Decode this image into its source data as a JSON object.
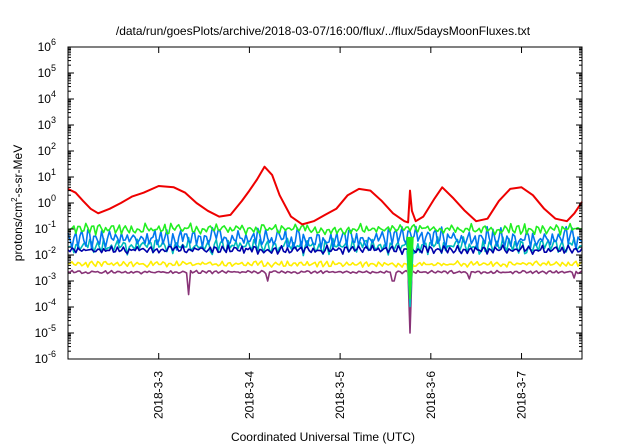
{
  "chart_data": {
    "type": "line",
    "title": "/data/run/goesPlots/archive/2018-03-07/16:00/flux/../flux/5daysMoonFluxes.txt",
    "xlabel": "Coordinated Universal Time (UTC)",
    "ylabel": "protons/cm²-s-sr-MeV",
    "ylabel_parts": {
      "base": "protons/cm",
      "sup": "2",
      "rest": "-s-sr-MeV"
    },
    "y_scale": "log",
    "ylim": [
      1e-06,
      1000000.0
    ],
    "y_ticks": [
      {
        "value": 1e-06,
        "base": "10",
        "exp": "-6"
      },
      {
        "value": 1e-05,
        "base": "10",
        "exp": "-5"
      },
      {
        "value": 0.0001,
        "base": "10",
        "exp": "-4"
      },
      {
        "value": 0.001,
        "base": "10",
        "exp": "-3"
      },
      {
        "value": 0.01,
        "base": "10",
        "exp": "-2"
      },
      {
        "value": 0.1,
        "base": "10",
        "exp": "-1"
      },
      {
        "value": 1,
        "base": "10",
        "exp": "0"
      },
      {
        "value": 10,
        "base": "10",
        "exp": "1"
      },
      {
        "value": 100,
        "base": "10",
        "exp": "2"
      },
      {
        "value": 1000.0,
        "base": "10",
        "exp": "3"
      },
      {
        "value": 10000.0,
        "base": "10",
        "exp": "4"
      },
      {
        "value": 100000.0,
        "base": "10",
        "exp": "5"
      },
      {
        "value": 1000000.0,
        "base": "10",
        "exp": "6"
      }
    ],
    "xlim": [
      "2018-03-02T00:00",
      "2018-03-07T16:00"
    ],
    "x_ticks": [
      {
        "value": "2018-03-03T00:00",
        "label": "2018-3-3"
      },
      {
        "value": "2018-03-04T00:00",
        "label": "2018-3-4"
      },
      {
        "value": "2018-03-05T00:00",
        "label": "2018-3-5"
      },
      {
        "value": "2018-03-06T00:00",
        "label": "2018-3-6"
      },
      {
        "value": "2018-03-07T00:00",
        "label": "2018-3-7"
      }
    ],
    "grid": false,
    "legend": "none",
    "series": [
      {
        "color": "#ee0000",
        "x": [
          "2018-03-02T00:00",
          "2018-03-02T02:00",
          "2018-03-02T04:00",
          "2018-03-02T06:00",
          "2018-03-02T08:00",
          "2018-03-02T11:00",
          "2018-03-02T14:00",
          "2018-03-02T17:00",
          "2018-03-02T20:00",
          "2018-03-03T00:00",
          "2018-03-03T04:00",
          "2018-03-03T07:00",
          "2018-03-03T10:00",
          "2018-03-03T13:00",
          "2018-03-03T16:00",
          "2018-03-03T19:00",
          "2018-03-03T22:00",
          "2018-03-04T00:00",
          "2018-03-04T02:00",
          "2018-03-04T04:00",
          "2018-03-04T06:00",
          "2018-03-04T08:00",
          "2018-03-04T11:00",
          "2018-03-04T14:00",
          "2018-03-04T17:00",
          "2018-03-04T20:00",
          "2018-03-04T23:00",
          "2018-03-05T02:00",
          "2018-03-05T05:00",
          "2018-03-05T08:00",
          "2018-03-05T11:00",
          "2018-03-05T14:00",
          "2018-03-05T17:00",
          "2018-03-05T18:00",
          "2018-03-05T18:30",
          "2018-03-05T19:00",
          "2018-03-05T20:00",
          "2018-03-05T22:00",
          "2018-03-06T01:00",
          "2018-03-06T03:00",
          "2018-03-06T06:00",
          "2018-03-06T09:00",
          "2018-03-06T12:00",
          "2018-03-06T15:00",
          "2018-03-06T18:00",
          "2018-03-06T21:00",
          "2018-03-07T00:00",
          "2018-03-07T03:00",
          "2018-03-07T06:00",
          "2018-03-07T09:00",
          "2018-03-07T12:00",
          "2018-03-07T14:00",
          "2018-03-07T16:00"
        ],
        "y": [
          3.5,
          2.5,
          1.2,
          0.6,
          0.4,
          0.6,
          1.0,
          1.8,
          2.5,
          4.5,
          4.0,
          2.5,
          1.0,
          0.5,
          0.3,
          0.35,
          1.2,
          3.0,
          8.0,
          25,
          12,
          2.0,
          0.3,
          0.15,
          0.2,
          0.35,
          0.6,
          2.0,
          3.5,
          3.0,
          1.2,
          0.4,
          0.2,
          0.18,
          3.0,
          0.5,
          0.2,
          0.3,
          1.5,
          4.0,
          1.5,
          0.5,
          0.2,
          0.25,
          1.2,
          3.5,
          4.0,
          2.0,
          0.6,
          0.25,
          0.2,
          0.4,
          1.1
        ]
      },
      {
        "color": "#22ee22",
        "baseline": 0.1,
        "spread": 1.4,
        "seed": 3,
        "dips": []
      },
      {
        "color": "#0077ee",
        "baseline": 0.045,
        "spread": 2.0,
        "seed": 7,
        "dips": []
      },
      {
        "color": "#00bbbb",
        "baseline": 0.022,
        "spread": 1.7,
        "seed": 11,
        "dips": []
      },
      {
        "color": "#0000aa",
        "baseline": 0.016,
        "spread": 1.3,
        "seed": 17,
        "dips": []
      },
      {
        "color": "#ffee00",
        "baseline": 0.0045,
        "spread": 1.2,
        "seed": 23,
        "dips": []
      },
      {
        "color": "#883377",
        "baseline": 0.0022,
        "spread": 1.1,
        "seed": 29,
        "dips": [
          {
            "x": "2018-03-03T08:00",
            "y": 0.0003
          },
          {
            "x": "2018-03-04T05:00",
            "y": 0.001
          },
          {
            "x": "2018-03-05T14:00",
            "y": 0.001
          },
          {
            "x": "2018-03-05T18:30",
            "y": 1e-05
          },
          {
            "x": "2018-03-06T10:00",
            "y": 0.0012
          },
          {
            "x": "2018-03-07T14:00",
            "y": 0.0013
          }
        ]
      }
    ]
  }
}
